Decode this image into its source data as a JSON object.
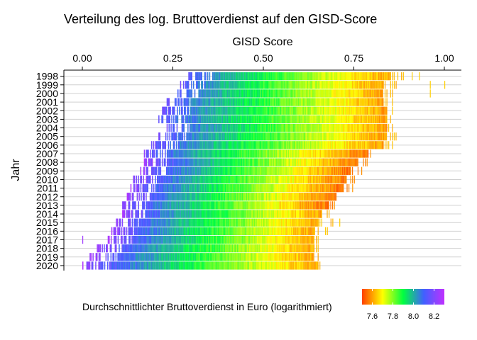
{
  "chart_data": {
    "type": "heatmap",
    "title": "Verteilung des log. Bruttoverdienst auf den GISD-Score",
    "xlabel": "GISD Score",
    "ylabel": "Jahr",
    "x_axis_position": "top",
    "xlim": [
      0.0,
      1.0
    ],
    "xticks": [
      "0.00",
      "0.25",
      "0.50",
      "0.75",
      "1.00"
    ],
    "xtick_values": [
      0.0,
      0.25,
      0.5,
      0.75,
      1.0
    ],
    "grid": true,
    "legend": {
      "title": "Durchschnittlichter Bruttoverdienst in Euro (logarithmiert)",
      "position": "bottom",
      "ticks": [
        "7.6",
        "7.8",
        "8.0",
        "8.2"
      ],
      "tick_values": [
        7.6,
        7.8,
        8.0,
        8.2
      ],
      "range": [
        7.5,
        8.3
      ],
      "colors": [
        "#ff4000",
        "#ffff00",
        "#00ff40",
        "#4060ff",
        "#c030ff"
      ]
    },
    "rows": [
      {
        "year": "1998",
        "min": 0.29,
        "max": 0.89,
        "dense_max": 0.85,
        "log_min": 7.6,
        "log_max": 8.15,
        "outliers": [
          0.91,
          0.93
        ]
      },
      {
        "year": "1999",
        "min": 0.27,
        "max": 0.87,
        "dense_max": 0.83,
        "log_min": 7.6,
        "log_max": 8.15,
        "outliers": [
          0.96,
          1.0
        ]
      },
      {
        "year": "2000",
        "min": 0.26,
        "max": 0.86,
        "dense_max": 0.83,
        "log_min": 7.6,
        "log_max": 8.15,
        "outliers": [
          0.96
        ]
      },
      {
        "year": "2001",
        "min": 0.23,
        "max": 0.86,
        "dense_max": 0.83,
        "log_min": 7.6,
        "log_max": 8.18,
        "outliers": []
      },
      {
        "year": "2002",
        "min": 0.22,
        "max": 0.86,
        "dense_max": 0.84,
        "log_min": 7.6,
        "log_max": 8.18,
        "outliers": []
      },
      {
        "year": "2003",
        "min": 0.21,
        "max": 0.86,
        "dense_max": 0.84,
        "log_min": 7.6,
        "log_max": 8.18,
        "outliers": []
      },
      {
        "year": "2004",
        "min": 0.23,
        "max": 0.86,
        "dense_max": 0.84,
        "log_min": 7.6,
        "log_max": 8.18,
        "outliers": []
      },
      {
        "year": "2005",
        "min": 0.21,
        "max": 0.87,
        "dense_max": 0.84,
        "log_min": 7.6,
        "log_max": 8.18,
        "outliers": []
      },
      {
        "year": "2006",
        "min": 0.19,
        "max": 0.86,
        "dense_max": 0.83,
        "log_min": 7.6,
        "log_max": 8.18,
        "outliers": []
      },
      {
        "year": "2007",
        "min": 0.17,
        "max": 0.8,
        "dense_max": 0.79,
        "log_min": 7.55,
        "log_max": 8.2,
        "outliers": []
      },
      {
        "year": "2008",
        "min": 0.17,
        "max": 0.79,
        "dense_max": 0.76,
        "log_min": 7.55,
        "log_max": 8.25,
        "outliers": []
      },
      {
        "year": "2009",
        "min": 0.16,
        "max": 0.78,
        "dense_max": 0.74,
        "log_min": 7.55,
        "log_max": 8.25,
        "outliers": []
      },
      {
        "year": "2010",
        "min": 0.14,
        "max": 0.76,
        "dense_max": 0.73,
        "log_min": 7.55,
        "log_max": 8.25,
        "outliers": []
      },
      {
        "year": "2011",
        "min": 0.13,
        "max": 0.75,
        "dense_max": 0.72,
        "log_min": 7.55,
        "log_max": 8.25,
        "outliers": []
      },
      {
        "year": "2012",
        "min": 0.12,
        "max": 0.72,
        "dense_max": 0.7,
        "log_min": 7.55,
        "log_max": 8.25,
        "outliers": []
      },
      {
        "year": "2013",
        "min": 0.11,
        "max": 0.7,
        "dense_max": 0.68,
        "log_min": 7.55,
        "log_max": 8.25,
        "outliers": []
      },
      {
        "year": "2014",
        "min": 0.11,
        "max": 0.69,
        "dense_max": 0.66,
        "log_min": 7.6,
        "log_max": 8.25,
        "outliers": []
      },
      {
        "year": "2015",
        "min": 0.09,
        "max": 0.7,
        "dense_max": 0.65,
        "log_min": 7.6,
        "log_max": 8.25,
        "outliers": [
          0.71
        ]
      },
      {
        "year": "2016",
        "min": 0.08,
        "max": 0.68,
        "dense_max": 0.64,
        "log_min": 7.6,
        "log_max": 8.25,
        "outliers": []
      },
      {
        "year": "2017",
        "min": 0.07,
        "max": 0.66,
        "dense_max": 0.64,
        "log_min": 7.6,
        "log_max": 8.25,
        "outliers": [
          0.0
        ]
      },
      {
        "year": "2018",
        "min": 0.04,
        "max": 0.66,
        "dense_max": 0.64,
        "log_min": 7.6,
        "log_max": 8.25,
        "outliers": []
      },
      {
        "year": "2019",
        "min": 0.02,
        "max": 0.66,
        "dense_max": 0.64,
        "log_min": 7.6,
        "log_max": 8.25,
        "outliers": []
      },
      {
        "year": "2020",
        "min": 0.0,
        "max": 0.67,
        "dense_max": 0.65,
        "log_min": 7.6,
        "log_max": 8.25,
        "outliers": []
      }
    ]
  }
}
